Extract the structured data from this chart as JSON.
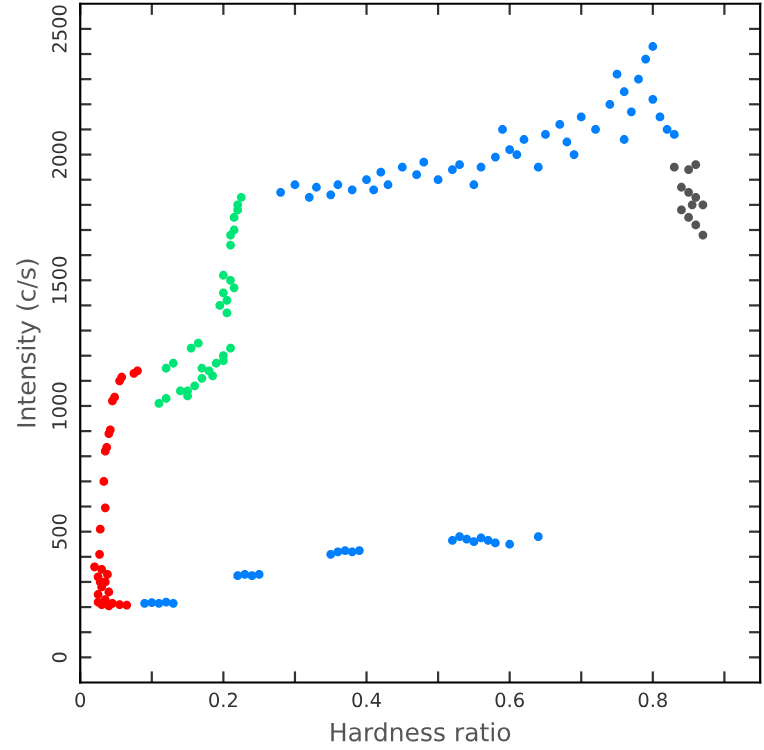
{
  "chart_data": {
    "type": "scatter",
    "xlabel": "Hardness ratio",
    "ylabel": "Intensity (c/s)",
    "xlim": [
      0,
      0.95
    ],
    "ylim": [
      -100,
      2600
    ],
    "xticks": [
      0,
      {
        "value": 0.1,
        "label": null
      },
      0.2,
      {
        "value": 0.3,
        "label": null
      },
      0.4,
      {
        "value": 0.5,
        "label": null
      },
      0.6,
      {
        "value": 0.7,
        "label": null
      },
      0.8,
      {
        "value": 0.9,
        "label": null
      }
    ],
    "yticks": [
      0,
      {
        "value": 100,
        "label": null
      },
      {
        "value": 200,
        "label": null
      },
      {
        "value": 300,
        "label": null
      },
      {
        "value": 400,
        "label": null
      },
      500,
      {
        "value": 600,
        "label": null
      },
      {
        "value": 700,
        "label": null
      },
      {
        "value": 800,
        "label": null
      },
      {
        "value": 900,
        "label": null
      },
      1000,
      {
        "value": 1100,
        "label": null
      },
      {
        "value": 1200,
        "label": null
      },
      {
        "value": 1300,
        "label": null
      },
      {
        "value": 1400,
        "label": null
      },
      1500,
      {
        "value": 1600,
        "label": null
      },
      {
        "value": 1700,
        "label": null
      },
      {
        "value": 1800,
        "label": null
      },
      {
        "value": 1900,
        "label": null
      },
      2000,
      {
        "value": 2100,
        "label": null
      },
      {
        "value": 2200,
        "label": null
      },
      {
        "value": 2300,
        "label": null
      },
      {
        "value": 2400,
        "label": null
      },
      2500
    ],
    "marker": "circle",
    "grid": false,
    "legend": false,
    "series": [
      {
        "color": "#ff0000",
        "x": [
          0.08,
          0.075,
          0.055,
          0.058,
          0.045,
          0.048,
          0.04,
          0.042,
          0.035,
          0.037,
          0.033,
          0.035,
          0.028,
          0.027,
          0.02,
          0.03,
          0.025,
          0.035,
          0.03,
          0.04,
          0.025,
          0.035,
          0.045,
          0.055,
          0.025,
          0.03,
          0.04,
          0.065,
          0.028,
          0.038
        ],
        "values": [
          1140,
          1130,
          1100,
          1115,
          1020,
          1035,
          890,
          905,
          820,
          835,
          700,
          595,
          510,
          410,
          360,
          350,
          320,
          300,
          280,
          260,
          250,
          230,
          215,
          210,
          220,
          210,
          205,
          208,
          300,
          330
        ]
      },
      {
        "color": "#00e676",
        "x": [
          0.11,
          0.12,
          0.12,
          0.13,
          0.14,
          0.15,
          0.16,
          0.17,
          0.18,
          0.19,
          0.2,
          0.21,
          0.2,
          0.17,
          0.155,
          0.165,
          0.15,
          0.185,
          0.195,
          0.2,
          0.21,
          0.205,
          0.2,
          0.21,
          0.215,
          0.22,
          0.225,
          0.215,
          0.21,
          0.22,
          0.205,
          0.215
        ],
        "values": [
          1010,
          1030,
          1150,
          1170,
          1060,
          1040,
          1080,
          1110,
          1140,
          1170,
          1200,
          1230,
          1180,
          1150,
          1230,
          1250,
          1060,
          1120,
          1400,
          1450,
          1500,
          1370,
          1520,
          1640,
          1700,
          1780,
          1830,
          1750,
          1680,
          1800,
          1420,
          1470
        ]
      },
      {
        "color": "#0080ff",
        "x": [
          0.09,
          0.1,
          0.11,
          0.12,
          0.13,
          0.22,
          0.23,
          0.24,
          0.25,
          0.35,
          0.36,
          0.37,
          0.38,
          0.39,
          0.52,
          0.53,
          0.54,
          0.55,
          0.56,
          0.57,
          0.58,
          0.6,
          0.64,
          0.28,
          0.3,
          0.32,
          0.33,
          0.35,
          0.36,
          0.38,
          0.4,
          0.41,
          0.43,
          0.42,
          0.45,
          0.47,
          0.5,
          0.52,
          0.48,
          0.55,
          0.53,
          0.56,
          0.58,
          0.6,
          0.62,
          0.59,
          0.61,
          0.64,
          0.65,
          0.67,
          0.68,
          0.7,
          0.69,
          0.72,
          0.74,
          0.76,
          0.78,
          0.8,
          0.77,
          0.75,
          0.79,
          0.82,
          0.83,
          0.81,
          0.8,
          0.76
        ],
        "values": [
          215,
          218,
          215,
          220,
          215,
          325,
          330,
          325,
          330,
          410,
          420,
          425,
          420,
          425,
          465,
          480,
          470,
          460,
          475,
          465,
          455,
          450,
          480,
          1850,
          1880,
          1830,
          1870,
          1840,
          1880,
          1860,
          1900,
          1860,
          1880,
          1930,
          1950,
          1920,
          1900,
          1940,
          1970,
          1880,
          1960,
          1950,
          1990,
          2020,
          2060,
          2100,
          2000,
          1950,
          2080,
          2120,
          2050,
          2150,
          2000,
          2100,
          2200,
          2250,
          2300,
          2220,
          2170,
          2320,
          2380,
          2100,
          2080,
          2150,
          2430,
          2060
        ]
      },
      {
        "color": "#555555",
        "x": [
          0.83,
          0.85,
          0.86,
          0.84,
          0.85,
          0.86,
          0.87,
          0.84,
          0.85,
          0.86,
          0.87,
          0.855
        ],
        "values": [
          1950,
          1940,
          1960,
          1870,
          1850,
          1830,
          1800,
          1780,
          1750,
          1720,
          1680,
          1800
        ]
      }
    ]
  }
}
